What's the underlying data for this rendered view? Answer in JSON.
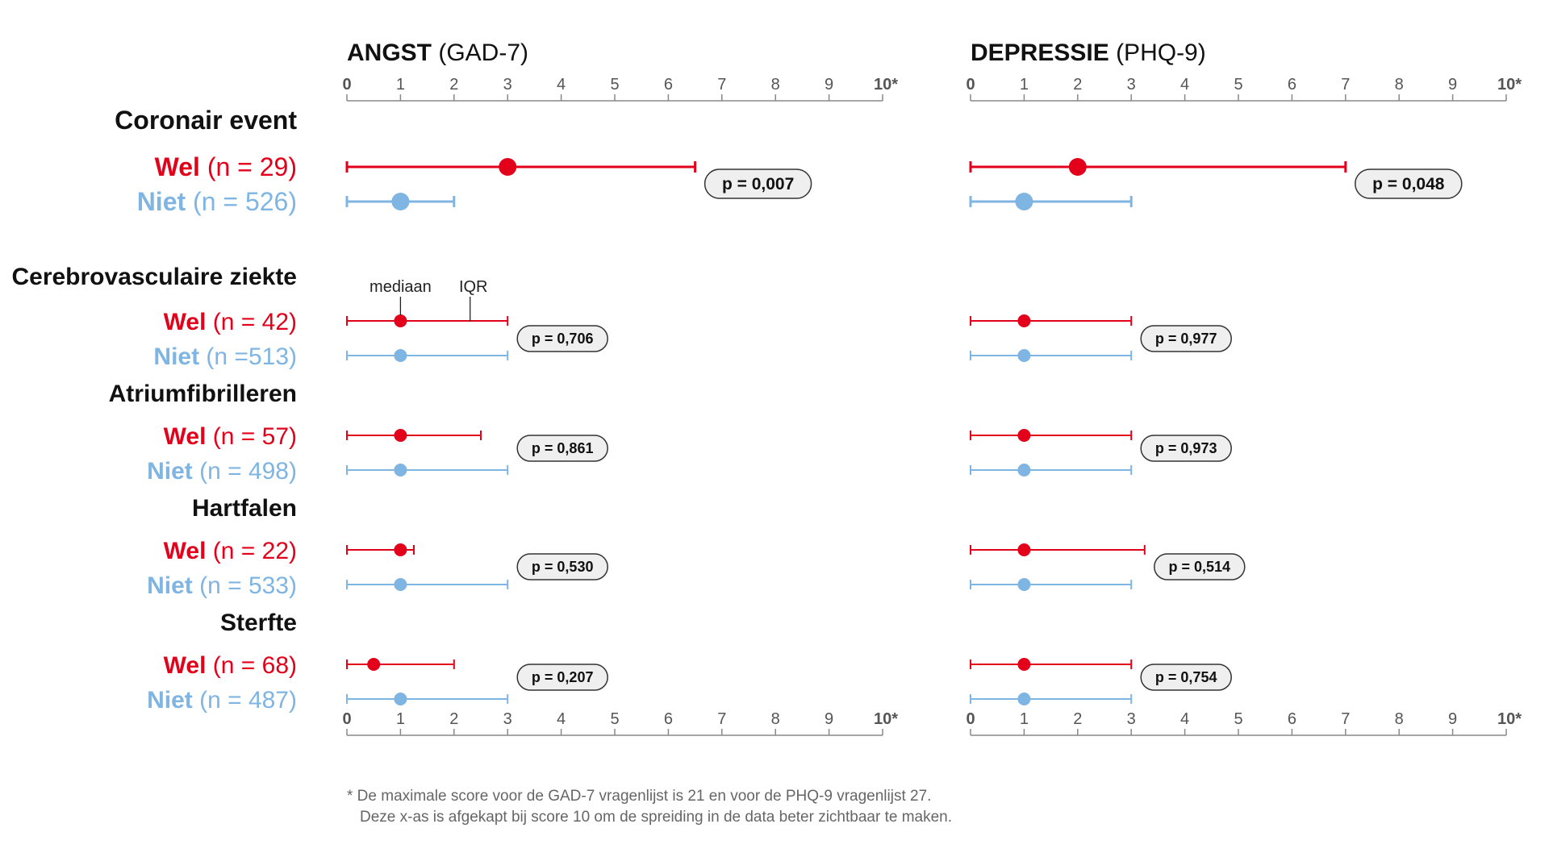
{
  "chart_data": {
    "type": "dot-interval",
    "footnote": [
      "* De maximale score voor de GAD-7 vragenlijst is 21 en voor de PHQ-9 vragenlijst 27.",
      "Deze x-as is afgekapt bij score 10 om de spreiding in de data beter zichtbaar te maken."
    ],
    "annotations": {
      "median": "mediaan",
      "iqr": "IQR"
    },
    "colors": {
      "wel": "#e2001a",
      "niet": "#7fb5e3"
    },
    "panels": [
      {
        "title_bold": "ANGST",
        "title_rest": "(GAD-7)",
        "xlim": [
          0,
          10
        ],
        "ticks": [
          "0",
          "1",
          "2",
          "3",
          "4",
          "5",
          "6",
          "7",
          "8",
          "9",
          "10*"
        ]
      },
      {
        "title_bold": "DEPRESSIE",
        "title_rest": "(PHQ-9)",
        "xlim": [
          0,
          10
        ],
        "ticks": [
          "0",
          "1",
          "2",
          "3",
          "4",
          "5",
          "6",
          "7",
          "8",
          "9",
          "10*"
        ]
      }
    ],
    "groups": [
      {
        "name": "Coronair event",
        "rows": [
          {
            "key": "wel",
            "label_bold": "Wel",
            "label_rest": "(n = 29)",
            "values": [
              {
                "median": 3,
                "q1": 0,
                "q3": 6.5
              },
              {
                "median": 2,
                "q1": 0,
                "q3": 7
              }
            ]
          },
          {
            "key": "niet",
            "label_bold": "Niet",
            "label_rest": "(n = 526)",
            "values": [
              {
                "median": 1,
                "q1": 0,
                "q3": 2
              },
              {
                "median": 1,
                "q1": 0,
                "q3": 3
              }
            ]
          }
        ],
        "p": [
          "p = 0,007",
          "p = 0,048"
        ]
      },
      {
        "name": "Cerebrovasculaire ziekte",
        "rows": [
          {
            "key": "wel",
            "label_bold": "Wel",
            "label_rest": "(n = 42)",
            "values": [
              {
                "median": 1,
                "q1": 0,
                "q3": 3
              },
              {
                "median": 1,
                "q1": 0,
                "q3": 3
              }
            ]
          },
          {
            "key": "niet",
            "label_bold": "Niet",
            "label_rest": "(n =513)",
            "values": [
              {
                "median": 1,
                "q1": 0,
                "q3": 3
              },
              {
                "median": 1,
                "q1": 0,
                "q3": 3
              }
            ]
          }
        ],
        "p": [
          "p = 0,706",
          "p = 0,977"
        ]
      },
      {
        "name": "Atriumfibrilleren",
        "rows": [
          {
            "key": "wel",
            "label_bold": "Wel",
            "label_rest": "(n = 57)",
            "values": [
              {
                "median": 1,
                "q1": 0,
                "q3": 2.5
              },
              {
                "median": 1,
                "q1": 0,
                "q3": 3
              }
            ]
          },
          {
            "key": "niet",
            "label_bold": "Niet",
            "label_rest": "(n = 498)",
            "values": [
              {
                "median": 1,
                "q1": 0,
                "q3": 3
              },
              {
                "median": 1,
                "q1": 0,
                "q3": 3
              }
            ]
          }
        ],
        "p": [
          "p = 0,861",
          "p = 0,973"
        ]
      },
      {
        "name": "Hartfalen",
        "rows": [
          {
            "key": "wel",
            "label_bold": "Wel",
            "label_rest": "(n = 22)",
            "values": [
              {
                "median": 1,
                "q1": 0,
                "q3": 1.25
              },
              {
                "median": 1,
                "q1": 0,
                "q3": 3.25
              }
            ]
          },
          {
            "key": "niet",
            "label_bold": "Niet",
            "label_rest": "(n = 533)",
            "values": [
              {
                "median": 1,
                "q1": 0,
                "q3": 3
              },
              {
                "median": 1,
                "q1": 0,
                "q3": 3
              }
            ]
          }
        ],
        "p": [
          "p = 0,530",
          "p = 0,514"
        ]
      },
      {
        "name": "Sterfte",
        "rows": [
          {
            "key": "wel",
            "label_bold": "Wel",
            "label_rest": "(n = 68)",
            "values": [
              {
                "median": 0.5,
                "q1": 0,
                "q3": 2
              },
              {
                "median": 1,
                "q1": 0,
                "q3": 3
              }
            ]
          },
          {
            "key": "niet",
            "label_bold": "Niet",
            "label_rest": "(n = 487)",
            "values": [
              {
                "median": 1,
                "q1": 0,
                "q3": 3
              },
              {
                "median": 1,
                "q1": 0,
                "q3": 3
              }
            ]
          }
        ],
        "p": [
          "p = 0,207",
          "p = 0,754"
        ]
      }
    ]
  }
}
